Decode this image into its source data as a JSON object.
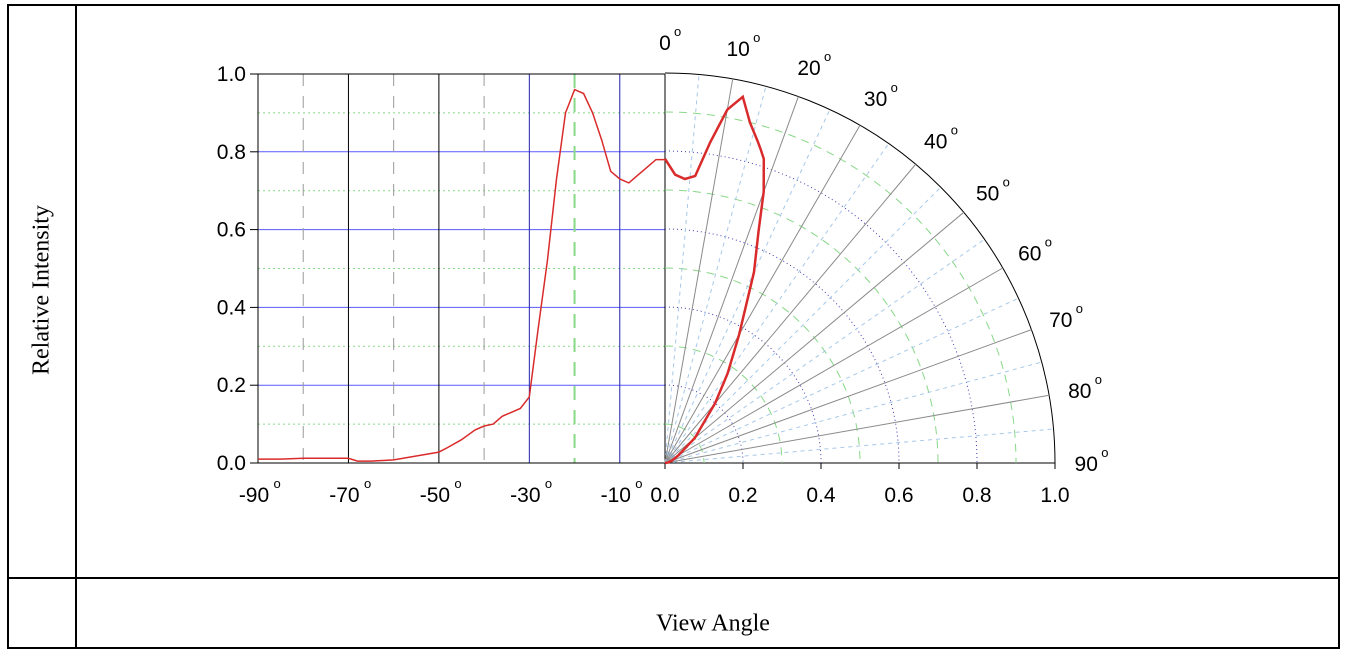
{
  "chart_data": {
    "type": "line",
    "xlabel": "View Angle",
    "ylabel": "Relative Intensity",
    "cartesian_panel": {
      "x_ticks": [
        "-90",
        "-70",
        "-50",
        "-30",
        "-10"
      ],
      "x_tick_values": [
        -90,
        -70,
        -50,
        -30,
        -10
      ],
      "xlim": [
        -90,
        0
      ],
      "y_ticks": [
        "0.0",
        "0.2",
        "0.4",
        "0.6",
        "0.8",
        "1.0"
      ],
      "ylim": [
        0,
        1.0
      ],
      "series": [
        {
          "x": [
            -90,
            -85,
            -80,
            -75,
            -70,
            -68,
            -65,
            -60,
            -55,
            -50,
            -48,
            -45,
            -42,
            -40,
            -38,
            -36,
            -34,
            -32,
            -30,
            -28,
            -26,
            -24,
            -22,
            -20,
            -18,
            -16,
            -14,
            -12,
            -10,
            -8,
            -6,
            -4,
            -2,
            0
          ],
          "y": [
            0.01,
            0.01,
            0.012,
            0.012,
            0.012,
            0.005,
            0.005,
            0.008,
            0.018,
            0.028,
            0.04,
            0.06,
            0.085,
            0.095,
            0.1,
            0.12,
            0.13,
            0.14,
            0.17,
            0.35,
            0.52,
            0.73,
            0.9,
            0.96,
            0.95,
            0.9,
            0.83,
            0.75,
            0.73,
            0.72,
            0.74,
            0.76,
            0.78,
            0.78
          ]
        }
      ]
    },
    "polar_panel": {
      "angle_ticks": [
        "0",
        "10",
        "20",
        "30",
        "40",
        "50",
        "60",
        "70",
        "80",
        "90"
      ],
      "angle_tick_values": [
        0,
        10,
        20,
        30,
        40,
        50,
        60,
        70,
        80,
        90
      ],
      "radial_ticks": [
        "0.0",
        "0.2",
        "0.4",
        "0.6",
        "0.8",
        "1.0"
      ],
      "rlim": [
        0,
        1.0
      ],
      "series": [
        {
          "angle": [
            0,
            2,
            4,
            6,
            8,
            10,
            12,
            14,
            16,
            17,
            18,
            20,
            22,
            25,
            30,
            35,
            40,
            50,
            60,
            70,
            80,
            90
          ],
          "r": [
            0.78,
            0.74,
            0.73,
            0.74,
            0.83,
            0.92,
            0.96,
            0.9,
            0.86,
            0.84,
            0.82,
            0.74,
            0.64,
            0.54,
            0.38,
            0.28,
            0.2,
            0.1,
            0.04,
            0.02,
            0.008,
            0.0
          ]
        }
      ]
    },
    "colors": {
      "curve": "#d92b2b",
      "blue_grid": "#5a5aff",
      "green_grid": "#88d888",
      "black_grid": "#000000",
      "grey_grid": "#9a9a9a"
    }
  }
}
